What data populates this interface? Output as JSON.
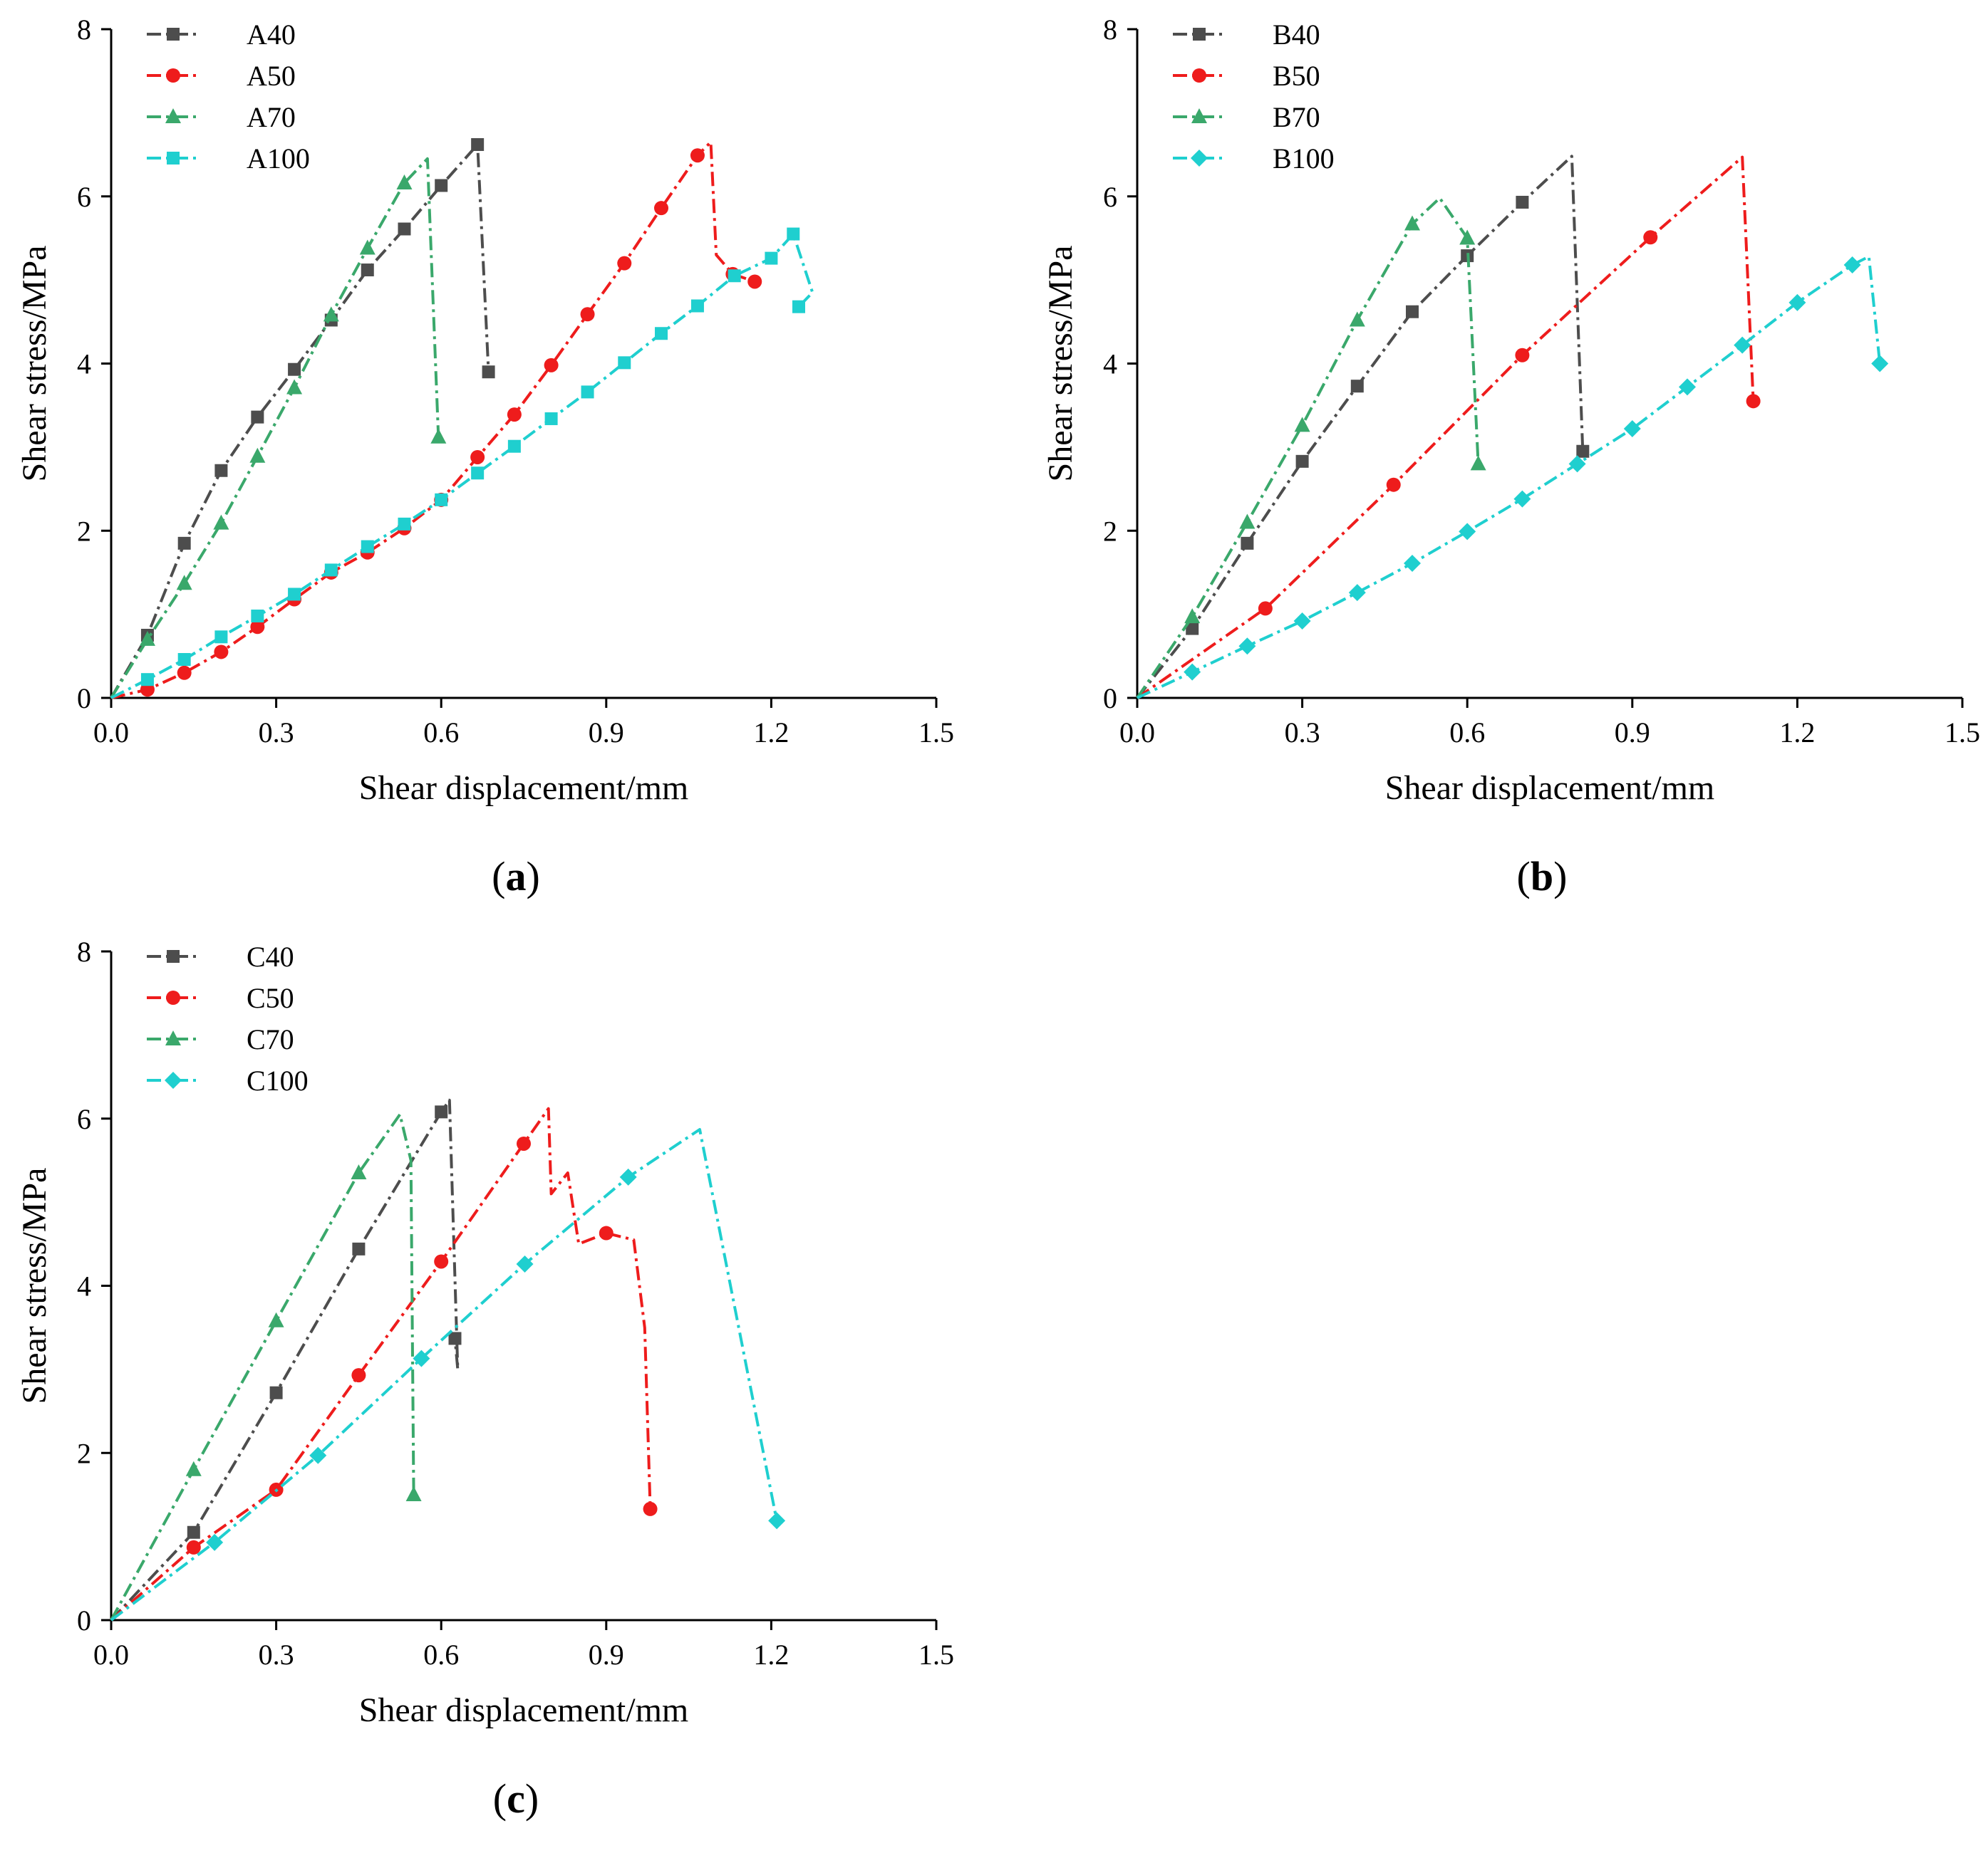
{
  "chart_data": [
    {
      "id": "a",
      "type": "line",
      "panel_label": "a",
      "xlabel": "Shear displacement/mm",
      "ylabel": "Shear stress/MPa",
      "xlim": [
        0,
        1.5
      ],
      "ylim": [
        0,
        8
      ],
      "xticks": [
        0,
        0.3,
        0.6,
        0.9,
        1.2,
        1.5
      ],
      "xtick_labels": [
        "0.0",
        "0.3",
        "0.6",
        "0.9",
        "1.2",
        "1.5"
      ],
      "yticks": [
        0,
        2,
        4,
        6,
        8
      ],
      "ytick_labels": [
        "0",
        "2",
        "4",
        "6",
        "8"
      ],
      "legend_position": "top-left",
      "series": [
        {
          "name": "A40",
          "color": "#4d4d4d",
          "marker": "square",
          "x": [
            0,
            0.066,
            0.133,
            0.2,
            0.266,
            0.333,
            0.4,
            0.466,
            0.533,
            0.6,
            0.666,
            0.686
          ],
          "y": [
            0,
            0.75,
            1.85,
            2.72,
            3.36,
            3.93,
            4.52,
            5.12,
            5.61,
            6.13,
            6.62,
            3.9
          ],
          "marker_idx": [
            1,
            2,
            3,
            4,
            5,
            6,
            7,
            8,
            9,
            10,
            11
          ]
        },
        {
          "name": "A50",
          "color": "#ee1c1c",
          "marker": "circle",
          "x": [
            0,
            0.066,
            0.133,
            0.2,
            0.266,
            0.333,
            0.4,
            0.466,
            0.533,
            0.6,
            0.666,
            0.733,
            0.8,
            0.866,
            0.933,
            1.0,
            1.066,
            1.09,
            1.1,
            1.13,
            1.17
          ],
          "y": [
            0,
            0.1,
            0.3,
            0.55,
            0.85,
            1.18,
            1.5,
            1.74,
            2.03,
            2.37,
            2.88,
            3.39,
            3.98,
            4.59,
            5.2,
            5.86,
            6.49,
            6.65,
            5.3,
            5.07,
            4.98
          ],
          "marker_idx": [
            1,
            2,
            3,
            4,
            5,
            6,
            7,
            8,
            9,
            10,
            11,
            12,
            13,
            14,
            15,
            16,
            19,
            20
          ]
        },
        {
          "name": "A70",
          "color": "#3aa86b",
          "marker": "triangle",
          "x": [
            0,
            0.066,
            0.133,
            0.2,
            0.266,
            0.333,
            0.4,
            0.466,
            0.533,
            0.575,
            0.595
          ],
          "y": [
            0,
            0.7,
            1.37,
            2.09,
            2.89,
            3.71,
            4.58,
            5.38,
            6.16,
            6.45,
            3.12
          ],
          "marker_idx": [
            1,
            2,
            3,
            4,
            5,
            6,
            7,
            8,
            10
          ]
        },
        {
          "name": "A100",
          "color": "#1fcfcf",
          "marker": "square",
          "x": [
            0,
            0.066,
            0.133,
            0.2,
            0.266,
            0.333,
            0.4,
            0.466,
            0.533,
            0.6,
            0.666,
            0.733,
            0.8,
            0.866,
            0.933,
            1.0,
            1.066,
            1.133,
            1.2,
            1.24,
            1.275,
            1.25
          ],
          "y": [
            0,
            0.22,
            0.46,
            0.73,
            0.98,
            1.24,
            1.53,
            1.81,
            2.08,
            2.37,
            2.69,
            3.01,
            3.34,
            3.66,
            4.01,
            4.36,
            4.69,
            5.05,
            5.26,
            5.55,
            4.85,
            4.68
          ],
          "marker_idx": [
            1,
            2,
            3,
            4,
            5,
            6,
            7,
            8,
            9,
            10,
            11,
            12,
            13,
            14,
            15,
            16,
            17,
            18,
            19,
            21
          ]
        }
      ]
    },
    {
      "id": "b",
      "type": "line",
      "panel_label": "b",
      "xlabel": "Shear displacement/mm",
      "ylabel": "Shear stress/MPa",
      "xlim": [
        0,
        1.5
      ],
      "ylim": [
        0,
        8
      ],
      "xticks": [
        0,
        0.3,
        0.6,
        0.9,
        1.2,
        1.5
      ],
      "xtick_labels": [
        "0.0",
        "0.3",
        "0.6",
        "0.9",
        "1.2",
        "1.5"
      ],
      "yticks": [
        0,
        2,
        4,
        6,
        8
      ],
      "ytick_labels": [
        "0",
        "2",
        "4",
        "6",
        "8"
      ],
      "legend_position": "top-left",
      "series": [
        {
          "name": "B40",
          "color": "#4d4d4d",
          "marker": "square",
          "x": [
            0,
            0.1,
            0.2,
            0.3,
            0.4,
            0.5,
            0.6,
            0.7,
            0.79,
            0.81
          ],
          "y": [
            0,
            0.83,
            1.85,
            2.83,
            3.73,
            4.62,
            5.29,
            5.93,
            6.48,
            2.95
          ],
          "marker_idx": [
            1,
            2,
            3,
            4,
            5,
            6,
            7,
            9
          ]
        },
        {
          "name": "B50",
          "color": "#ee1c1c",
          "marker": "circle",
          "x": [
            0,
            0.233,
            0.466,
            0.7,
            0.933,
            1.1,
            1.12
          ],
          "y": [
            0,
            1.07,
            2.55,
            4.1,
            5.51,
            6.47,
            3.55
          ],
          "marker_idx": [
            1,
            2,
            3,
            4,
            6
          ]
        },
        {
          "name": "B70",
          "color": "#3aa86b",
          "marker": "triangle",
          "x": [
            0,
            0.1,
            0.2,
            0.3,
            0.4,
            0.5,
            0.55,
            0.6,
            0.62
          ],
          "y": [
            0,
            0.97,
            2.1,
            3.26,
            4.52,
            5.67,
            5.98,
            5.5,
            2.8
          ],
          "marker_idx": [
            1,
            2,
            3,
            4,
            5,
            7,
            8
          ]
        },
        {
          "name": "B100",
          "color": "#1fcfcf",
          "marker": "diamond",
          "x": [
            0,
            0.1,
            0.2,
            0.3,
            0.4,
            0.5,
            0.6,
            0.7,
            0.8,
            0.9,
            1.0,
            1.1,
            1.2,
            1.3,
            1.33,
            1.35
          ],
          "y": [
            0,
            0.31,
            0.62,
            0.92,
            1.26,
            1.61,
            1.99,
            2.38,
            2.8,
            3.22,
            3.72,
            4.22,
            4.73,
            5.18,
            5.28,
            4.0
          ],
          "marker_idx": [
            1,
            2,
            3,
            4,
            5,
            6,
            7,
            8,
            9,
            10,
            11,
            12,
            13,
            15
          ]
        }
      ]
    },
    {
      "id": "c",
      "type": "line",
      "panel_label": "c",
      "xlabel": "Shear displacement/mm",
      "ylabel": "Shear stress/MPa",
      "xlim": [
        0,
        1.5
      ],
      "ylim": [
        0,
        8
      ],
      "xticks": [
        0,
        0.3,
        0.6,
        0.9,
        1.2,
        1.5
      ],
      "xtick_labels": [
        "0.0",
        "0.3",
        "0.6",
        "0.9",
        "1.2",
        "1.5"
      ],
      "yticks": [
        0,
        2,
        4,
        6,
        8
      ],
      "ytick_labels": [
        "0",
        "2",
        "4",
        "6",
        "8"
      ],
      "legend_position": "top-left",
      "series": [
        {
          "name": "C40",
          "color": "#4d4d4d",
          "marker": "square",
          "x": [
            0,
            0.15,
            0.3,
            0.45,
            0.6,
            0.615,
            0.63,
            0.625
          ],
          "y": [
            0,
            1.05,
            2.72,
            4.44,
            6.08,
            6.22,
            3.0,
            3.37
          ],
          "marker_idx": [
            1,
            2,
            3,
            4,
            7
          ]
        },
        {
          "name": "C50",
          "color": "#ee1c1c",
          "marker": "circle",
          "x": [
            0,
            0.15,
            0.3,
            0.45,
            0.6,
            0.75,
            0.795,
            0.8,
            0.83,
            0.85,
            0.9,
            0.95,
            0.97,
            0.98
          ],
          "y": [
            0,
            0.87,
            1.56,
            2.93,
            4.29,
            5.7,
            6.12,
            5.1,
            5.35,
            4.5,
            4.63,
            4.55,
            3.5,
            1.33
          ],
          "marker_idx": [
            1,
            2,
            3,
            4,
            5,
            10,
            13
          ]
        },
        {
          "name": "C70",
          "color": "#3aa86b",
          "marker": "triangle",
          "x": [
            0,
            0.15,
            0.3,
            0.45,
            0.525,
            0.545,
            0.55
          ],
          "y": [
            0,
            1.8,
            3.58,
            5.35,
            6.05,
            5.5,
            1.5
          ],
          "marker_idx": [
            1,
            2,
            3,
            6
          ]
        },
        {
          "name": "C100",
          "color": "#1fcfcf",
          "marker": "diamond",
          "x": [
            0,
            0.188,
            0.376,
            0.564,
            0.752,
            0.94,
            1.07,
            1.21
          ],
          "y": [
            0,
            0.93,
            1.97,
            3.13,
            4.26,
            5.3,
            5.87,
            1.19
          ],
          "marker_idx": [
            1,
            2,
            3,
            4,
            5,
            7
          ]
        }
      ]
    }
  ]
}
